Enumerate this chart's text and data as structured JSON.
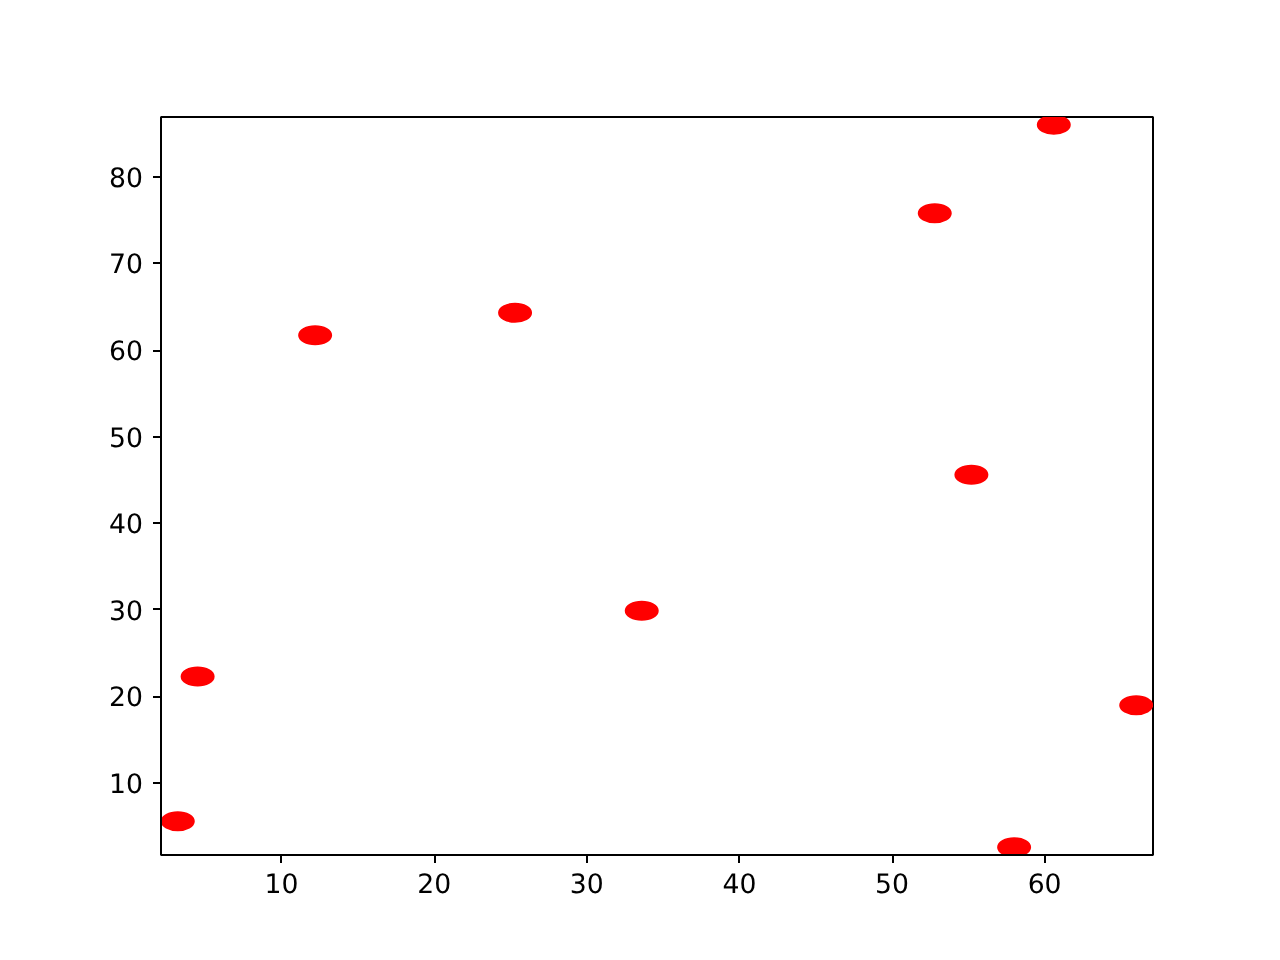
{
  "chart_data": {
    "type": "scatter",
    "x": [
      3.2,
      4.5,
      12.2,
      25.3,
      33.6,
      52.8,
      55.2,
      58.0,
      60.6,
      66.0
    ],
    "values": [
      5.6,
      22.3,
      61.7,
      64.3,
      29.9,
      75.8,
      45.6,
      2.6,
      86.0,
      19.0
    ],
    "color": "#ff0000",
    "marker": "circle",
    "xlim": [
      2.1,
      67.1
    ],
    "ylim": [
      1.7,
      86.9
    ],
    "xticks": [
      10,
      20,
      30,
      40,
      50,
      60
    ],
    "yticks": [
      10,
      20,
      30,
      40,
      50,
      60,
      70,
      80
    ]
  }
}
